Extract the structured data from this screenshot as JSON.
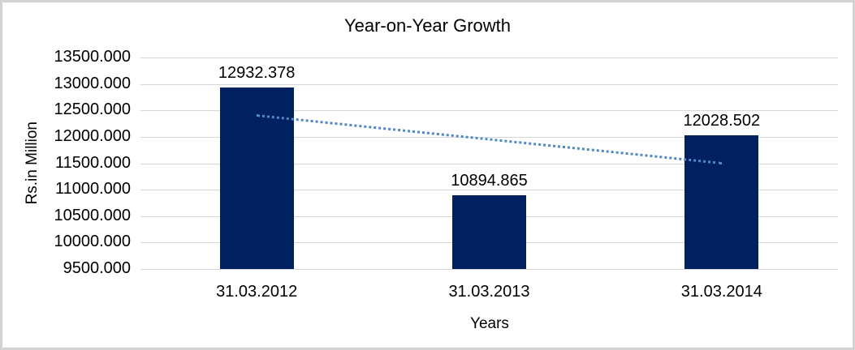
{
  "chart": {
    "title": "Year-on-Year Growth",
    "x_axis_title": "Years",
    "y_axis_title": "Rs.in Million"
  },
  "chart_data": {
    "type": "bar",
    "title": "Year-on-Year Growth",
    "xlabel": "Years",
    "ylabel": "Rs.in Million",
    "categories": [
      "31.03.2012",
      "31.03.2013",
      "31.03.2014"
    ],
    "values": [
      12932.378,
      10894.865,
      12028.502
    ],
    "data_labels": [
      "12932.378",
      "10894.865",
      "12028.502"
    ],
    "ylim": [
      9500,
      13500
    ],
    "ytick_step": 500,
    "ytick_labels": [
      "13500.000",
      "13000.000",
      "12500.000",
      "12000.000",
      "11500.000",
      "11000.000",
      "10500.000",
      "10000.000",
      "9500.000"
    ],
    "grid": true,
    "legend": "none",
    "trendline": {
      "type": "linear",
      "style": "dotted",
      "start_value": 12403.9,
      "end_value": 11500.0
    },
    "colors": {
      "bar": "#002060",
      "trendline": "#4F87C7",
      "gridline": "#D6D6D6",
      "frame_border": "#D2D2D2",
      "text": "#000000"
    }
  }
}
